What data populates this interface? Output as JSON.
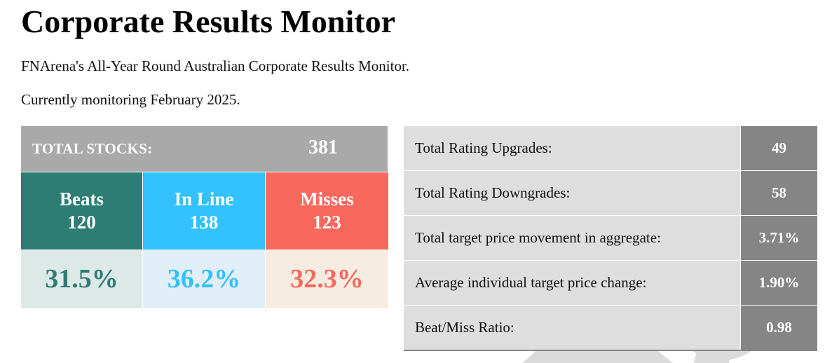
{
  "page": {
    "title": "Corporate Results Monitor",
    "intro": "FNArena's All-Year Round Australian Corporate Results Monitor.",
    "monitoring": "Currently monitoring February 2025."
  },
  "summary": {
    "total_label": "TOTAL STOCKS:",
    "total_value": "381",
    "categories": [
      {
        "name": "Beats",
        "count": "120",
        "percent": "31.5%"
      },
      {
        "name": "In Line",
        "count": "138",
        "percent": "36.2%"
      },
      {
        "name": "Misses",
        "count": "123",
        "percent": "32.3%"
      }
    ]
  },
  "stats": [
    {
      "label": "Total Rating Upgrades:",
      "value": "49"
    },
    {
      "label": "Total Rating Downgrades:",
      "value": "58"
    },
    {
      "label": "Total target price movement in aggregate:",
      "value": "3.71%"
    },
    {
      "label": "Average individual target price change:",
      "value": "1.90%"
    },
    {
      "label": "Beat/Miss Ratio:",
      "value": "0.98"
    }
  ],
  "colors": {
    "beats": "#2e7d74",
    "in_line": "#33c1ff",
    "misses": "#f8685c",
    "total_bar": "#a9a9a9",
    "stat_value_bg": "#858585",
    "stat_label_bg": "#dedede"
  },
  "watermark_icon": "fnarena-watermark-logo"
}
